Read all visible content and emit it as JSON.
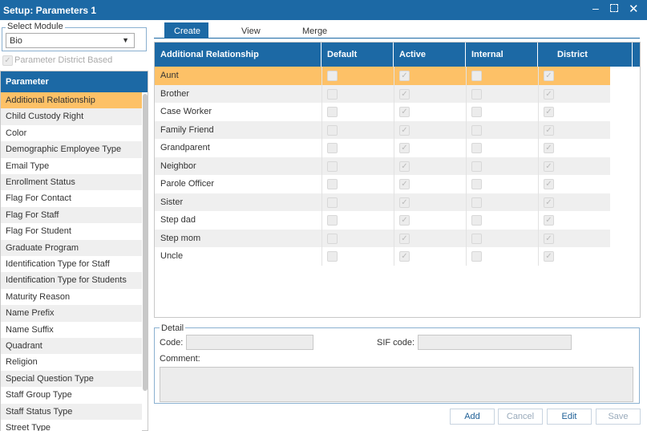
{
  "window": {
    "title": "Setup: Parameters 1"
  },
  "module": {
    "label": "Select Module",
    "value": "Bio",
    "district_checkbox": "Parameter District Based"
  },
  "parameters": {
    "header": "Parameter",
    "items": [
      "Additional Relationship",
      "Child Custody Right",
      "Color",
      "Demographic Employee Type",
      "Email Type",
      "Enrollment Status",
      "Flag For Contact",
      "Flag For Staff",
      "Flag For Student",
      "Graduate Program",
      "Identification Type for Staff",
      "Identification Type for Students",
      "Maturity Reason",
      "Name Prefix",
      "Name Suffix",
      "Quadrant",
      "Religion",
      "Special Question Type",
      "Staff Group Type",
      "Staff Status Type",
      "Street Type"
    ]
  },
  "tabs": [
    "Create",
    "View",
    "Merge"
  ],
  "grid": {
    "columns": [
      "Additional Relationship",
      "Default",
      "Active",
      "Internal",
      "District"
    ],
    "rows": [
      {
        "name": "Aunt",
        "checks": [
          false,
          true,
          false,
          true
        ]
      },
      {
        "name": "Brother",
        "checks": [
          false,
          true,
          false,
          true
        ]
      },
      {
        "name": "Case Worker",
        "checks": [
          false,
          true,
          false,
          true
        ]
      },
      {
        "name": "Family Friend",
        "checks": [
          false,
          true,
          false,
          true
        ]
      },
      {
        "name": "Grandparent",
        "checks": [
          false,
          true,
          false,
          true
        ]
      },
      {
        "name": "Neighbor",
        "checks": [
          false,
          true,
          false,
          true
        ]
      },
      {
        "name": "Parole Officer",
        "checks": [
          false,
          true,
          false,
          true
        ]
      },
      {
        "name": "Sister",
        "checks": [
          false,
          true,
          false,
          true
        ]
      },
      {
        "name": "Step dad",
        "checks": [
          false,
          true,
          false,
          true
        ]
      },
      {
        "name": "Step mom",
        "checks": [
          false,
          true,
          false,
          true
        ]
      },
      {
        "name": "Uncle",
        "checks": [
          false,
          true,
          false,
          true
        ]
      }
    ]
  },
  "detail": {
    "legend": "Detail",
    "code_label": "Code:",
    "sif_label": "SIF code:",
    "comment_label": "Comment:"
  },
  "buttons": [
    "Add",
    "Cancel",
    "Edit",
    "Save"
  ]
}
